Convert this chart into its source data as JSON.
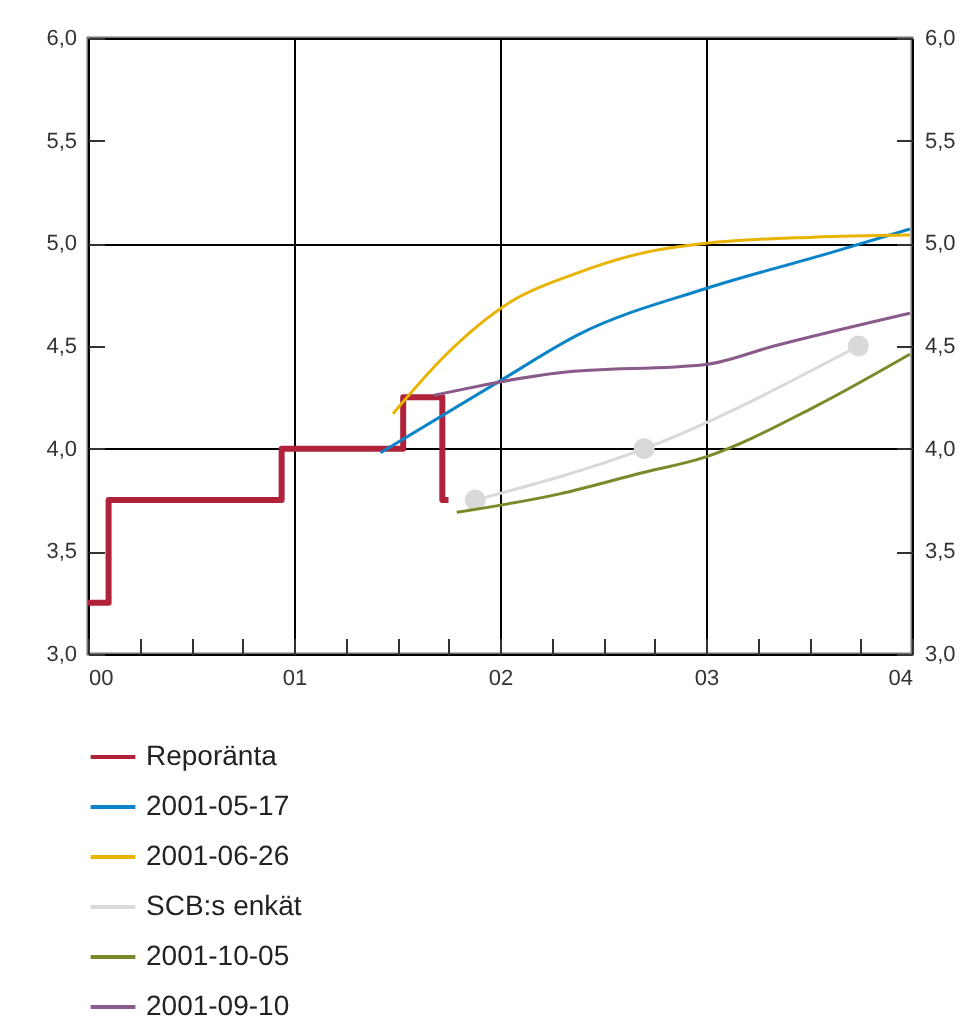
{
  "chart_data": {
    "type": "line",
    "xlim": [
      0,
      4
    ],
    "xticks": [
      {
        "value": 0,
        "label": "00"
      },
      {
        "value": 0.25,
        "label": null
      },
      {
        "value": 0.5,
        "label": null
      },
      {
        "value": 0.75,
        "label": null
      },
      {
        "value": 1,
        "label": "01"
      },
      {
        "value": 1.25,
        "label": null
      },
      {
        "value": 1.5,
        "label": null
      },
      {
        "value": 1.75,
        "label": null
      },
      {
        "value": 2,
        "label": "02"
      },
      {
        "value": 2.25,
        "label": null
      },
      {
        "value": 2.5,
        "label": null
      },
      {
        "value": 2.75,
        "label": null
      },
      {
        "value": 3,
        "label": "03"
      },
      {
        "value": 3.25,
        "label": null
      },
      {
        "value": 3.5,
        "label": null
      },
      {
        "value": 3.75,
        "label": null
      },
      {
        "value": 4,
        "label": "04"
      }
    ],
    "ylim": [
      3,
      6
    ],
    "yticks": [
      {
        "value": 3,
        "label": "3,0"
      },
      {
        "value": 3.5,
        "label": "3,5"
      },
      {
        "value": 4,
        "label": "4,0"
      },
      {
        "value": 4.5,
        "label": "4,5"
      },
      {
        "value": 5,
        "label": "5,0"
      },
      {
        "value": 5.5,
        "label": "5,5"
      },
      {
        "value": 6,
        "label": "6,0"
      }
    ],
    "y2lim": [
      3,
      6
    ],
    "y2ticks": [
      {
        "value": 3,
        "label": "3,0"
      },
      {
        "value": 3.5,
        "label": "3,5"
      },
      {
        "value": 4,
        "label": "4,0"
      },
      {
        "value": 4.5,
        "label": "4,5"
      },
      {
        "value": 5,
        "label": "5,0"
      },
      {
        "value": 5.5,
        "label": "5,5"
      },
      {
        "value": 6,
        "label": "6,0"
      }
    ],
    "grid": true,
    "legend": "bottom",
    "marker": "none",
    "series": [
      {
        "name": "Reporänta",
        "type": "step",
        "color": "#b0223a",
        "x": [
          0,
          0.1,
          0.94,
          1.53,
          1.72,
          1.75
        ],
        "values": [
          3.25,
          3.75,
          4.0,
          4.25,
          3.75,
          3.75
        ]
      },
      {
        "name": "2001-05-17",
        "color": "#0a84c8",
        "x": [
          1.42,
          2.0,
          2.39,
          3.0,
          3.59,
          3.99
        ],
        "values": [
          3.98,
          4.33,
          4.56,
          4.78,
          4.95,
          5.07
        ]
      },
      {
        "name": "2001-06-26",
        "color": "#e8b400",
        "x": [
          1.48,
          1.74,
          2.06,
          2.36,
          2.68,
          3.0,
          3.52,
          3.99
        ],
        "values": [
          4.17,
          4.46,
          4.72,
          4.85,
          4.95,
          5.0,
          5.03,
          5.04
        ]
      },
      {
        "name": "SCB:s enkät",
        "color": "#d9d9d9",
        "marker": "circle",
        "x": [
          1.88,
          2.7,
          3.74
        ],
        "values": [
          3.75,
          4.0,
          4.5
        ]
      },
      {
        "name": "2001-10-05",
        "color": "#7a8a2a",
        "x": [
          1.79,
          2.29,
          2.68,
          3.0,
          3.52,
          3.99
        ],
        "values": [
          3.69,
          3.78,
          3.88,
          3.96,
          4.2,
          4.46
        ]
      },
      {
        "name": "2001-09-10",
        "color": "#8a5a8a",
        "x": [
          1.68,
          2.29,
          3.0,
          3.33,
          3.99
        ],
        "values": [
          4.26,
          4.37,
          4.41,
          4.5,
          4.66
        ]
      }
    ]
  }
}
